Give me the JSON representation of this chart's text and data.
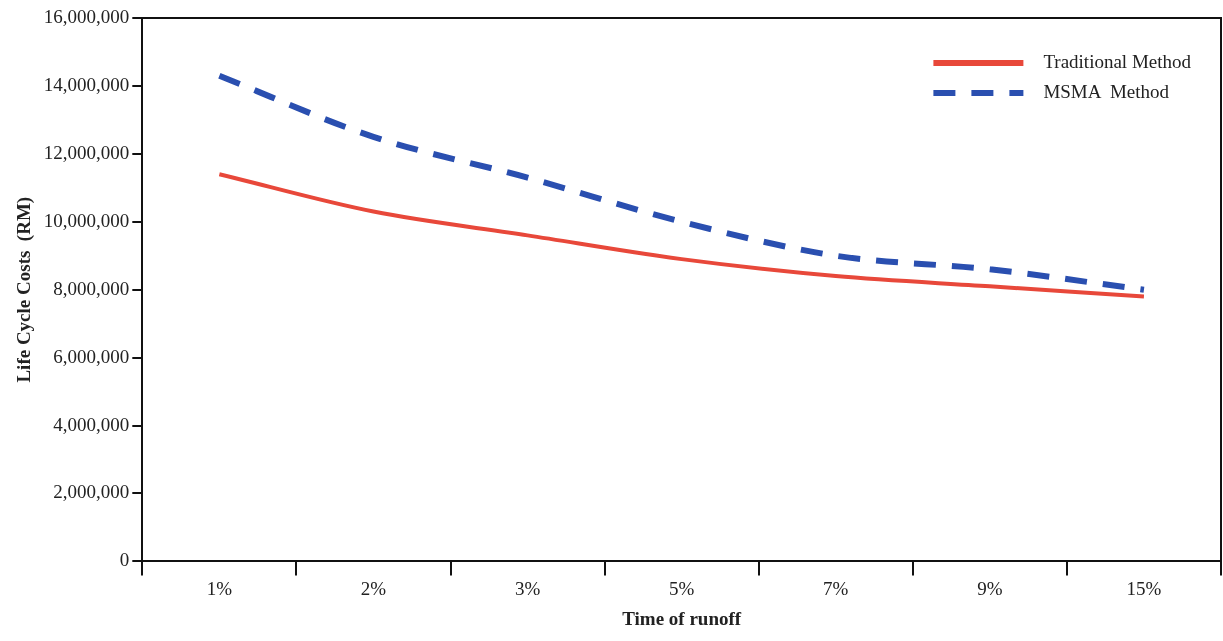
{
  "chart_data": {
    "type": "line",
    "xlabel": "Time of runoff",
    "ylabel": "Life Cycle Costs  (RM)",
    "categories": [
      "1%",
      "2%",
      "3%",
      "5%",
      "7%",
      "9%",
      "15%"
    ],
    "series": [
      {
        "name": "Traditional Method",
        "color": "#e8483a",
        "line_style": "solid",
        "values": [
          11400000,
          10300000,
          9600000,
          8900000,
          8400000,
          8100000,
          7800000
        ]
      },
      {
        "name": "MSMA  Method",
        "color": "#2a4fb0",
        "line_style": "dashed",
        "values": [
          14300000,
          12500000,
          11300000,
          10000000,
          9000000,
          8600000,
          8000000
        ]
      }
    ],
    "ylim": [
      0,
      16000000
    ],
    "yticks": [
      0,
      {
        "value": 2000000,
        "label": "2,000,000"
      },
      {
        "value": 4000000,
        "label": "4,000,000"
      },
      {
        "value": 6000000,
        "label": "6,000,000"
      },
      {
        "value": 8000000,
        "label": "8,000,000"
      },
      {
        "value": 10000000,
        "label": "10,000,000"
      },
      {
        "value": 12000000,
        "label": "12,000,000"
      },
      {
        "value": 14000000,
        "label": "14,000,000"
      },
      {
        "value": 16000000,
        "label": "16,000,000"
      }
    ],
    "grid": false,
    "legend": "top right",
    "marker": "none"
  }
}
